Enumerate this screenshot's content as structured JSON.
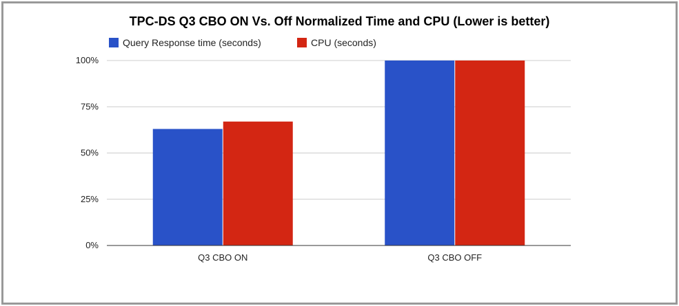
{
  "chart_data": {
    "type": "bar",
    "title": "TPC-DS Q3 CBO ON Vs. Off Normalized Time and CPU (Lower is better)",
    "categories": [
      "Q3 CBO ON",
      "Q3 CBO OFF"
    ],
    "series": [
      {
        "name": "Query Response time (seconds)",
        "values": [
          63,
          100
        ],
        "color": "#2952c8"
      },
      {
        "name": "CPU (seconds)",
        "values": [
          67,
          100
        ],
        "color": "#d32613"
      }
    ],
    "y_ticks": [
      "0%",
      "25%",
      "50%",
      "75%",
      "100%"
    ],
    "y_tick_values": [
      0,
      25,
      50,
      75,
      100
    ],
    "ylim": [
      0,
      100
    ],
    "legend_position": "top-left",
    "grid": true
  }
}
